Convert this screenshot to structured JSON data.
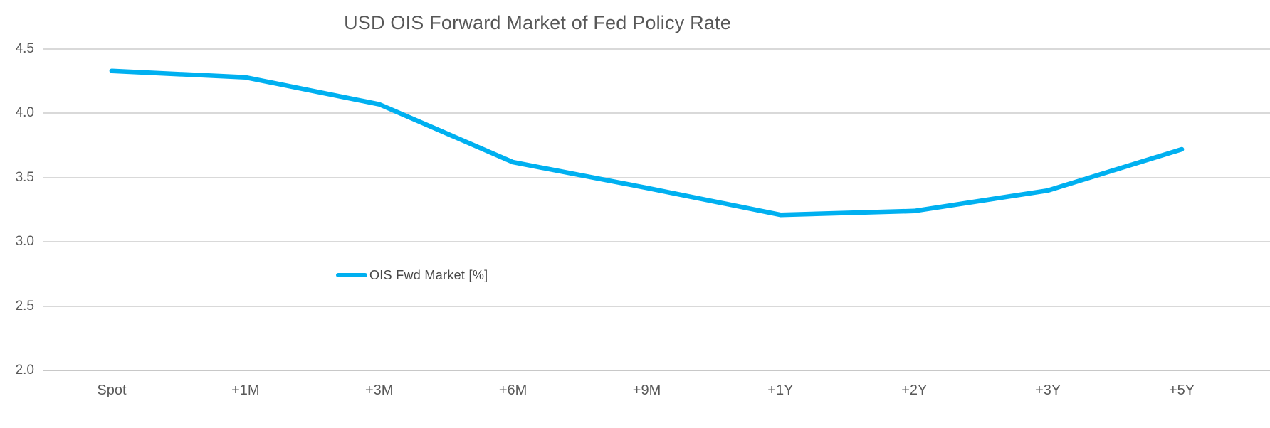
{
  "chart_data": {
    "type": "line",
    "title": "USD OIS Forward Market of Fed Policy Rate",
    "categories": [
      "Spot",
      "+1M",
      "+3M",
      "+6M",
      "+9M",
      "+1Y",
      "+2Y",
      "+3Y",
      "+5Y"
    ],
    "series": [
      {
        "name": "OIS Fwd Market [%]",
        "values": [
          4.33,
          4.28,
          4.07,
          3.62,
          3.42,
          3.21,
          3.24,
          3.4,
          3.72
        ],
        "color": "#00B0F0"
      }
    ],
    "xlabel": "",
    "ylabel": "",
    "ylim": [
      2.0,
      4.5
    ],
    "yticks": [
      4.5,
      4.0,
      3.5,
      3.0,
      2.5,
      2.0
    ],
    "ytick_labels": [
      "4.5",
      "4.0",
      "3.5",
      "3.0",
      "2.5",
      "2.0"
    ],
    "grid": "horizontal-only",
    "legend_position": "inside-lower-left"
  },
  "colors": {
    "line": "#00B0F0",
    "gridline": "#d9d9d9",
    "bottom_axis_line": "#c8c8c8",
    "axis_text": "#595959",
    "title_text": "#575757",
    "legend_text": "#474747",
    "background": "#ffffff"
  }
}
